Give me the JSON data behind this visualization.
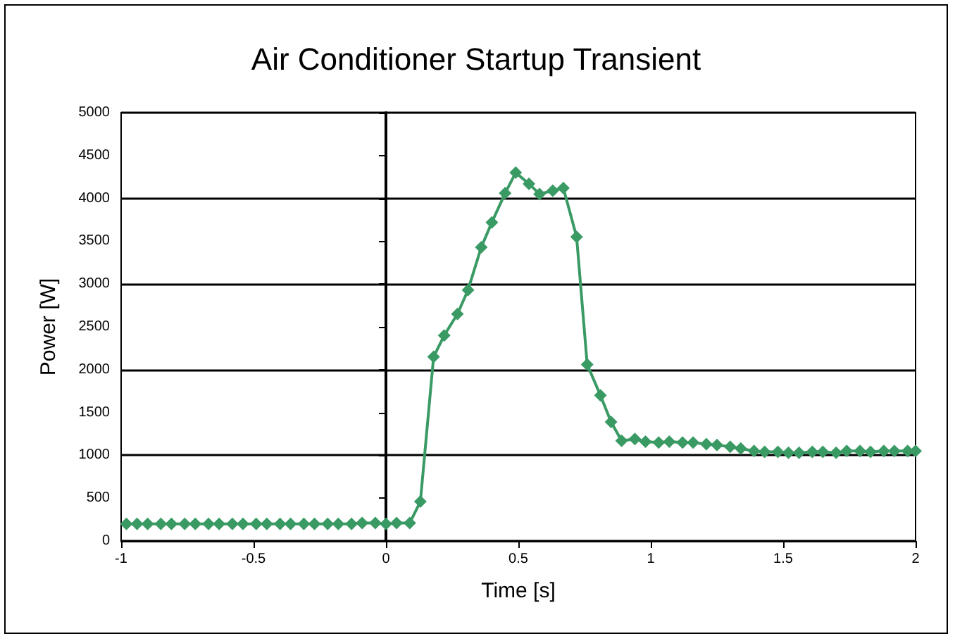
{
  "chart_data": {
    "type": "line",
    "title": "Air Conditioner Startup Transient",
    "xlabel": "Time [s]",
    "ylabel": "Power [W]",
    "series": [
      {
        "color": "#3a9a64",
        "x": [
          -0.98,
          -0.94,
          -0.9,
          -0.85,
          -0.81,
          -0.76,
          -0.72,
          -0.67,
          -0.63,
          -0.58,
          -0.54,
          -0.49,
          -0.45,
          -0.4,
          -0.36,
          -0.31,
          -0.27,
          -0.22,
          -0.18,
          -0.13,
          -0.09,
          -0.04,
          0.0,
          0.04,
          0.09,
          0.13,
          0.18,
          0.22,
          0.27,
          0.31,
          0.36,
          0.4,
          0.45,
          0.49,
          0.54,
          0.58,
          0.63,
          0.67,
          0.72,
          0.76,
          0.81,
          0.85,
          0.89,
          0.94,
          0.98,
          1.03,
          1.07,
          1.12,
          1.16,
          1.21,
          1.25,
          1.3,
          1.34,
          1.39,
          1.43,
          1.48,
          1.52,
          1.56,
          1.61,
          1.65,
          1.7,
          1.74,
          1.79,
          1.83,
          1.88,
          1.92,
          1.97,
          2.0
        ],
        "values": [
          200,
          200,
          200,
          200,
          200,
          200,
          200,
          200,
          200,
          200,
          200,
          200,
          200,
          200,
          200,
          200,
          200,
          200,
          200,
          200,
          210,
          210,
          200,
          210,
          210,
          460,
          2150,
          2400,
          2650,
          2930,
          3430,
          3720,
          4060,
          4300,
          4170,
          4050,
          4090,
          4120,
          3550,
          2060,
          1700,
          1390,
          1170,
          1190,
          1160,
          1150,
          1160,
          1150,
          1150,
          1130,
          1120,
          1100,
          1080,
          1050,
          1040,
          1040,
          1030,
          1030,
          1040,
          1040,
          1030,
          1050,
          1050,
          1040,
          1050,
          1050,
          1050,
          1050
        ]
      }
    ],
    "xlim": [
      -1,
      2
    ],
    "xticks": [
      -1,
      -0.5,
      0,
      0.5,
      1,
      1.5,
      2
    ],
    "ylim": [
      0,
      5000
    ],
    "yticks": [
      0,
      500,
      1000,
      1500,
      2000,
      2500,
      3000,
      3500,
      4000,
      4500,
      5000
    ],
    "grid": "y",
    "marker": "diamond",
    "line_style": "solid"
  }
}
